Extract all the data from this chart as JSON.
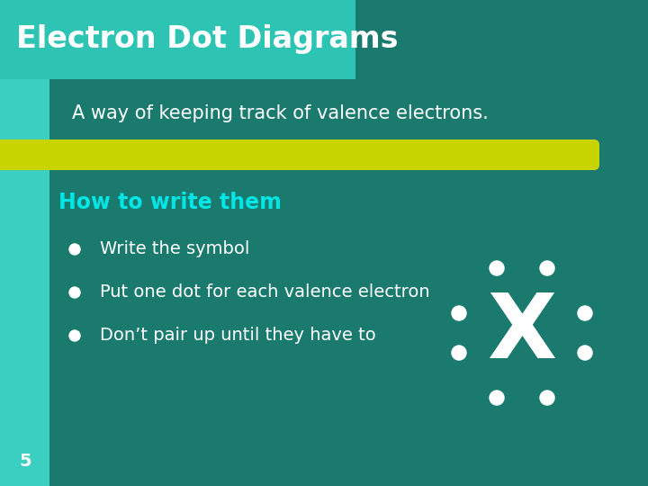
{
  "title": "Electron Dot Diagrams",
  "subtitle": "A way of keeping track of valence electrons.",
  "heading": "How to write them",
  "bullets": [
    "Write the symbol",
    "Put one dot for each valence electron",
    "Don’t pair up until they have to"
  ],
  "slide_number": "5",
  "bg_color": "#1a7a6e",
  "title_bg_color": "#2ec4b4",
  "left_panel_color": "#3acfc0",
  "bar_color": "#c8d400",
  "title_text_color": "#ffffff",
  "subtitle_text_color": "#ffffff",
  "heading_color": "#00e5e5",
  "bullet_text_color": "#ffffff",
  "slide_num_color": "#ffffff",
  "dot_color": "#ffffff",
  "symbol_color": "#ffffff",
  "symbol": "X",
  "title_fontsize": 24,
  "subtitle_fontsize": 15,
  "heading_fontsize": 17,
  "bullet_fontsize": 14,
  "slide_num_fontsize": 14,
  "symbol_fontsize": 72
}
